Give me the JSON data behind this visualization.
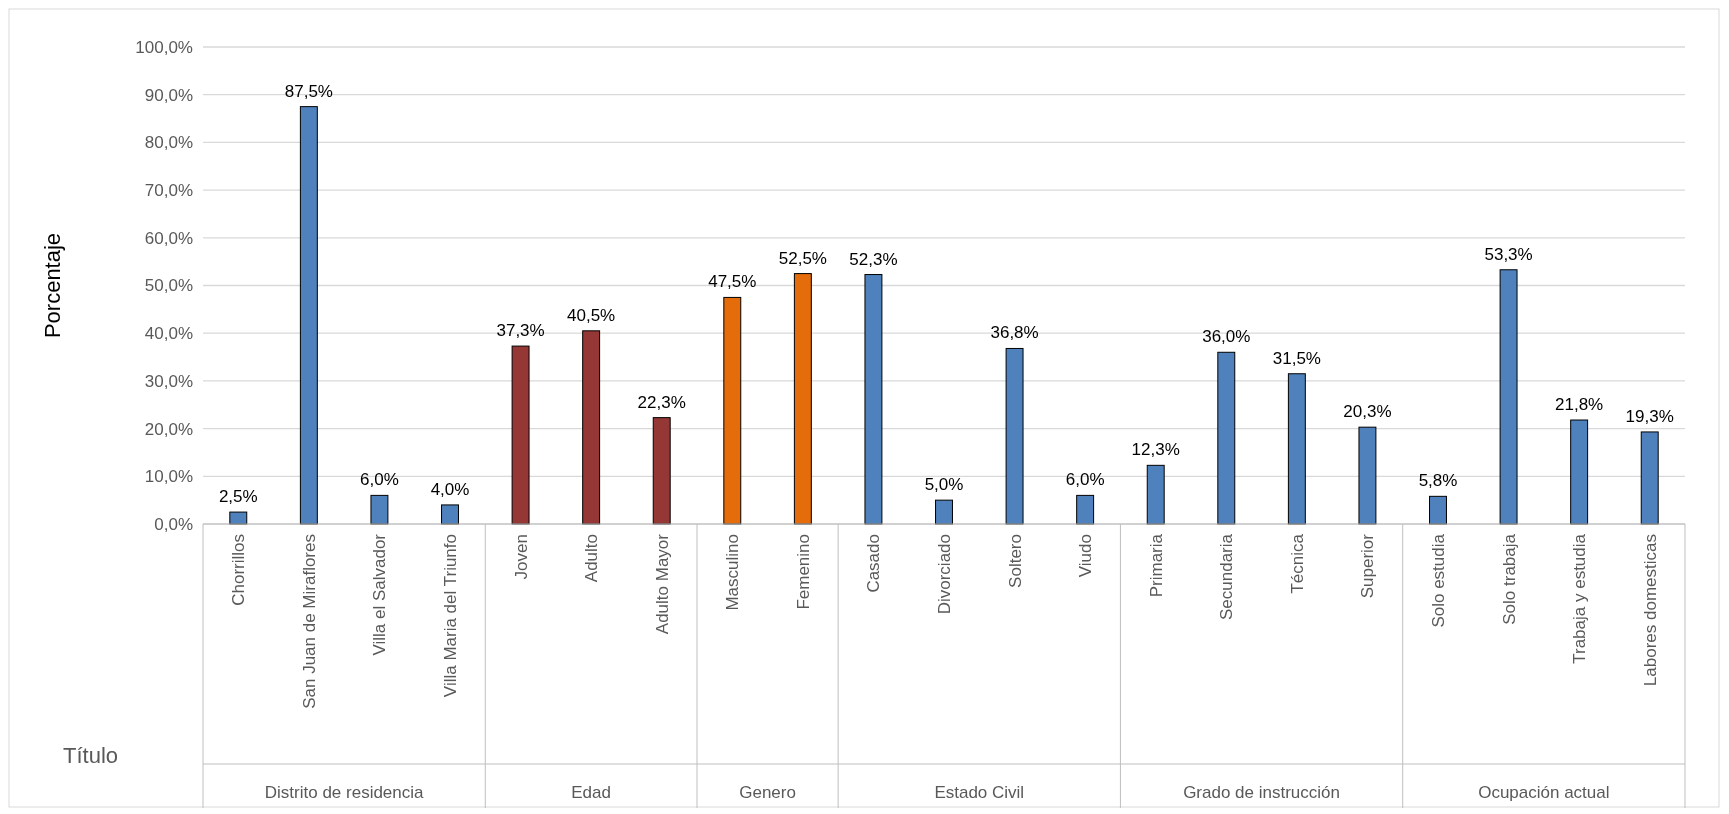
{
  "chart_data": {
    "type": "bar",
    "xlabel": "Título",
    "ylabel": "Porcentaje",
    "categories": [
      "Chorrillos",
      "San Juan de Miraflores",
      "Villa el Salvador",
      "Villa Maria del Triunfo",
      "Joven",
      "Adulto",
      "Adulto Mayor",
      "Masculino",
      "Femenino",
      "Casado",
      "Divorciado",
      "Soltero",
      "Viudo",
      "Primaria",
      "Secundaria",
      "Técnica",
      "Superior",
      "Solo estudia",
      "Solo trabaja",
      "Trabaja y estudia",
      "Labores domesticas"
    ],
    "series": [
      {
        "color": "#4f81bd",
        "values": [
          2.5,
          87.5,
          6.0,
          4.0,
          null,
          null,
          null,
          null,
          null,
          null,
          null,
          null,
          null,
          null,
          null,
          null,
          null,
          null,
          null,
          null,
          null
        ],
        "value_labels": [
          "2,5%",
          "87,5%",
          "6,0%",
          "4,0%",
          null,
          null,
          null,
          null,
          null,
          null,
          null,
          null,
          null,
          null,
          null,
          null,
          null,
          null,
          null,
          null,
          null
        ]
      },
      {
        "color": "#953735",
        "values": [
          null,
          null,
          null,
          null,
          37.3,
          40.5,
          22.3,
          null,
          null,
          null,
          null,
          null,
          null,
          null,
          null,
          null,
          null,
          null,
          null,
          null,
          null
        ],
        "value_labels": [
          null,
          null,
          null,
          null,
          "37,3%",
          "40,5%",
          "22,3%",
          null,
          null,
          null,
          null,
          null,
          null,
          null,
          null,
          null,
          null,
          null,
          null,
          null,
          null
        ]
      },
      {
        "color": "#e46c0a",
        "values": [
          null,
          null,
          null,
          null,
          null,
          null,
          null,
          47.5,
          52.5,
          null,
          null,
          null,
          null,
          null,
          null,
          null,
          null,
          null,
          null,
          null,
          null
        ],
        "value_labels": [
          null,
          null,
          null,
          null,
          null,
          null,
          null,
          "47,5%",
          "52,5%",
          null,
          null,
          null,
          null,
          null,
          null,
          null,
          null,
          null,
          null,
          null,
          null
        ]
      },
      {
        "color": "#4f81bd",
        "values": [
          null,
          null,
          null,
          null,
          null,
          null,
          null,
          null,
          null,
          52.3,
          5.0,
          36.8,
          6.0,
          null,
          null,
          null,
          null,
          null,
          null,
          null,
          null
        ],
        "value_labels": [
          null,
          null,
          null,
          null,
          null,
          null,
          null,
          null,
          null,
          "52,3%",
          "5,0%",
          "36,8%",
          "6,0%",
          null,
          null,
          null,
          null,
          null,
          null,
          null,
          null
        ]
      },
      {
        "color": "#4f81bd",
        "values": [
          null,
          null,
          null,
          null,
          null,
          null,
          null,
          null,
          null,
          null,
          null,
          null,
          null,
          12.3,
          36.0,
          31.5,
          20.3,
          null,
          null,
          null,
          null
        ],
        "value_labels": [
          null,
          null,
          null,
          null,
          null,
          null,
          null,
          null,
          null,
          null,
          null,
          null,
          null,
          "12,3%",
          "36,0%",
          "31,5%",
          "20,3%",
          null,
          null,
          null,
          null
        ]
      },
      {
        "color": "#4f81bd",
        "values": [
          null,
          null,
          null,
          null,
          null,
          null,
          null,
          null,
          null,
          null,
          null,
          null,
          null,
          null,
          null,
          null,
          null,
          5.8,
          53.3,
          21.8,
          19.3
        ],
        "value_labels": [
          null,
          null,
          null,
          null,
          null,
          null,
          null,
          null,
          null,
          null,
          null,
          null,
          null,
          null,
          null,
          null,
          null,
          "5,8%",
          "53,3%",
          "21,8%",
          "19,3%"
        ]
      }
    ],
    "annotations": [
      "Distrito de residencia",
      "Edad",
      "Genero",
      "Estado Civil",
      "Grado de instrucción",
      "Ocupación actual"
    ],
    "ylim": [
      0,
      100
    ],
    "yticks": [
      {
        "value": 0,
        "label": "0,0%"
      },
      {
        "value": 10,
        "label": "10,0%"
      },
      {
        "value": 20,
        "label": "20,0%"
      },
      {
        "value": 30,
        "label": "30,0%"
      },
      {
        "value": 40,
        "label": "40,0%"
      },
      {
        "value": 50,
        "label": "50,0%"
      },
      {
        "value": 60,
        "label": "60,0%"
      },
      {
        "value": 70,
        "label": "70,0%"
      },
      {
        "value": 80,
        "label": "80,0%"
      },
      {
        "value": 90,
        "label": "90,0%"
      },
      {
        "value": 100,
        "label": "100,0%"
      }
    ],
    "grid": "y"
  }
}
